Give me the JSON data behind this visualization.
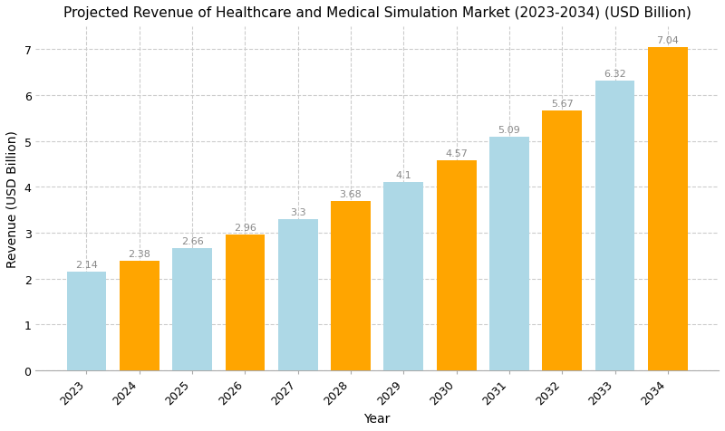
{
  "title": "Projected Revenue of Healthcare and Medical Simulation Market (2023-2034) (USD Billion)",
  "xlabel": "Year",
  "ylabel": "Revenue (USD Billion)",
  "years": [
    2023,
    2024,
    2025,
    2026,
    2027,
    2028,
    2029,
    2030,
    2031,
    2032,
    2033,
    2034
  ],
  "values": [
    2.14,
    2.38,
    2.66,
    2.96,
    3.3,
    3.68,
    4.1,
    4.57,
    5.09,
    5.67,
    6.32,
    7.04
  ],
  "colors": [
    "#add8e6",
    "#ffa500",
    "#add8e6",
    "#ffa500",
    "#add8e6",
    "#ffa500",
    "#add8e6",
    "#ffa500",
    "#add8e6",
    "#ffa500",
    "#add8e6",
    "#ffa500"
  ],
  "ylim": [
    0,
    7.5
  ],
  "yticks": [
    0,
    1,
    2,
    3,
    4,
    5,
    6,
    7
  ],
  "background_color": "#ffffff",
  "grid_color": "#cccccc",
  "label_color": "#888888",
  "title_fontsize": 11,
  "axis_label_fontsize": 10,
  "tick_fontsize": 9,
  "bar_label_fontsize": 8,
  "bar_width": 0.75,
  "xtick_rotation": 45,
  "xtick_ha": "right"
}
